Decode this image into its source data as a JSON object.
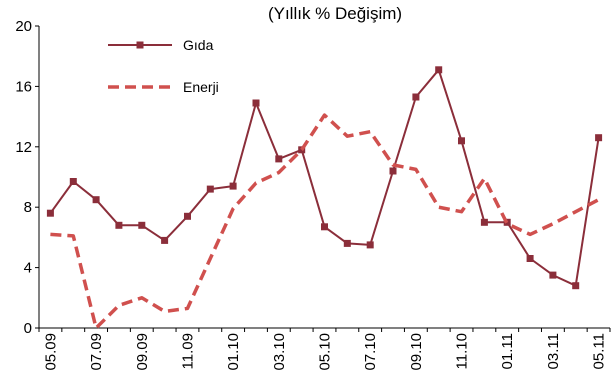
{
  "chart_data": {
    "type": "line",
    "title": "(Yıllık  % Değişim)",
    "xlabel": "",
    "ylabel": "",
    "ylim": [
      0,
      20
    ],
    "yticks": [
      "0",
      "4",
      "8",
      "12",
      "16",
      "20"
    ],
    "x": [
      "05.09",
      "06.09",
      "07.09",
      "08.09",
      "09.09",
      "10.09",
      "11.09",
      "12.09",
      "01.10",
      "02.10",
      "03.10",
      "04.10",
      "05.10",
      "06.10",
      "07.10",
      "08.10",
      "09.10",
      "10.10",
      "11.10",
      "12.10",
      "01.11",
      "02.11",
      "03.11",
      "04.11",
      "05.11"
    ],
    "xtick_labels": [
      "05.09",
      "07.09",
      "09.09",
      "11.09",
      "01.10",
      "03.10",
      "05.10",
      "07.10",
      "09.10",
      "11.10",
      "01.11",
      "03.11",
      "05.11"
    ],
    "grid": false,
    "legend": "top-left",
    "series": [
      {
        "name": "Gıda",
        "color": "#8B2E3A",
        "style": "solid-square-markers",
        "values": [
          7.6,
          9.7,
          8.5,
          6.8,
          6.8,
          5.8,
          7.4,
          9.2,
          9.4,
          14.9,
          11.2,
          11.8,
          6.7,
          5.6,
          5.5,
          10.4,
          15.3,
          17.1,
          12.4,
          7.0,
          7.0,
          4.6,
          3.5,
          2.8,
          12.6
        ]
      },
      {
        "name": "Enerji",
        "color": "#D0504E",
        "style": "dashed",
        "values": [
          6.2,
          6.1,
          0.0,
          1.5,
          2.0,
          1.1,
          1.3,
          4.6,
          7.9,
          9.6,
          10.3,
          11.8,
          14.1,
          12.7,
          13.0,
          10.8,
          10.5,
          8.0,
          7.7,
          9.9,
          6.9,
          6.2,
          6.9,
          7.7,
          8.5
        ]
      }
    ]
  }
}
